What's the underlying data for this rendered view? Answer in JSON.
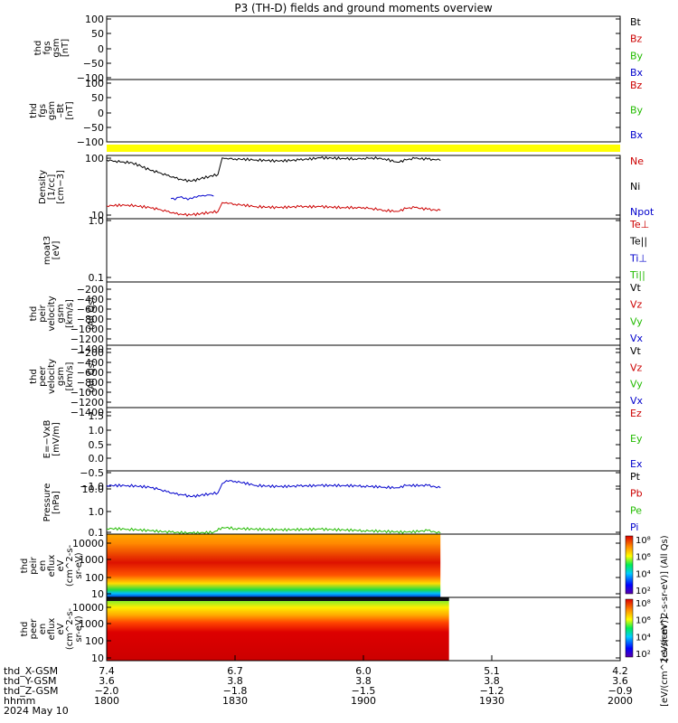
{
  "title": "P3 (TH-D) fields and ground moments overview",
  "chart_data": [
    {
      "id": "fgs",
      "type": "line",
      "ylabel": [
        "thd",
        "fgs",
        "gsm",
        "[nT]"
      ],
      "yticks": [
        "100",
        "50",
        "0",
        "−50",
        "−100"
      ],
      "ylim": [
        -100,
        100
      ],
      "legend": [
        {
          "name": "Bt",
          "color": "#000000"
        },
        {
          "name": "Bz",
          "color": "#cc0000"
        },
        {
          "name": "By",
          "color": "#22bb00"
        },
        {
          "name": "Bx",
          "color": "#0000cc"
        }
      ]
    },
    {
      "id": "fgs-clipped",
      "type": "line",
      "ylabel": [
        "thd",
        "fgs",
        "gsm",
        "–Bt",
        "[nT]"
      ],
      "yticks": [
        "100",
        "50",
        "0",
        "−50",
        "−100"
      ],
      "ylim": [
        -120,
        120
      ],
      "legend": [
        {
          "name": "Bz",
          "color": "#cc0000"
        },
        {
          "name": "By",
          "color": "#22bb00"
        },
        {
          "name": "Bx",
          "color": "#0000cc"
        }
      ]
    },
    {
      "id": "density",
      "type": "line",
      "yscale": "log",
      "ylabel": [
        "Density",
        "[1/cc]",
        "[cm−3]"
      ],
      "yticks": [
        "100",
        "10"
      ],
      "ylim": [
        9,
        110
      ],
      "legend": [
        {
          "name": "Ne",
          "color": "#cc0000"
        },
        {
          "name": "Ni",
          "color": "#000000"
        },
        {
          "name": "Npot",
          "color": "#0000cc"
        }
      ],
      "series": [
        {
          "name": "Ni",
          "color": "#000000",
          "x": [
            1800,
            1802,
            1804,
            1806,
            1808,
            1810,
            1812,
            1814,
            1816,
            1818,
            1820,
            1822,
            1824,
            1826,
            1827,
            1828,
            1830,
            1835,
            1840,
            1845,
            1850,
            1855,
            1858,
            1900,
            1902,
            1905,
            1908,
            1910,
            1912,
            1915,
            1917,
            1918
          ],
          "y": [
            92,
            88,
            85,
            82,
            72,
            62,
            56,
            50,
            45,
            41,
            40,
            44,
            48,
            52,
            100,
            98,
            96,
            92,
            88,
            92,
            100,
            98,
            96,
            98,
            100,
            96,
            84,
            92,
            98,
            95,
            92,
            90
          ]
        },
        {
          "name": "Npot",
          "color": "#0000cc",
          "x": [
            1815,
            1816,
            1817,
            1818,
            1819,
            1820,
            1821,
            1822,
            1823,
            1824,
            1825
          ],
          "y": [
            20,
            19,
            21,
            20,
            19,
            20,
            21,
            22,
            22,
            23,
            22
          ]
        },
        {
          "name": "Ne",
          "color": "#cc0000",
          "x": [
            1800,
            1805,
            1810,
            1812,
            1814,
            1816,
            1818,
            1820,
            1822,
            1824,
            1826,
            1827,
            1828,
            1830,
            1835,
            1840,
            1845,
            1850,
            1855,
            1858,
            1900,
            1902,
            1905,
            1908,
            1910,
            1912,
            1915,
            1918
          ],
          "y": [
            15,
            15.5,
            14,
            13,
            12,
            11,
            10.5,
            10.5,
            11,
            11.5,
            12,
            17,
            17,
            16,
            14.5,
            14,
            14.5,
            14.5,
            14,
            14,
            14,
            13.5,
            12.5,
            12,
            13.5,
            14,
            13,
            12.5
          ]
        }
      ]
    },
    {
      "id": "temperature",
      "type": "line",
      "yscale": "log",
      "ylabel": [
        "moat3",
        "[eV]"
      ],
      "yticks": [
        "1.0",
        "0.1"
      ],
      "ylim": [
        0.1,
        1.0
      ],
      "legend": [
        {
          "name": "Te⊥",
          "color": "#cc0000"
        },
        {
          "name": "Te||",
          "color": "#000000"
        },
        {
          "name": "Ti⊥",
          "color": "#0000cc"
        },
        {
          "name": "Ti||",
          "color": "#22bb00"
        }
      ]
    },
    {
      "id": "ion-velocity",
      "type": "line",
      "ylabel": [
        "thd",
        "peir",
        "velocity",
        "gsm",
        "[km/s]"
      ],
      "ylabel_side": "(All Qs)",
      "yticks": [
        "−200",
        "−400",
        "−600",
        "−800",
        "−1000",
        "−1200",
        "−1400"
      ],
      "ylim": [
        -1400,
        -100
      ],
      "legend": [
        {
          "name": "Vt",
          "color": "#000000"
        },
        {
          "name": "Vz",
          "color": "#cc0000"
        },
        {
          "name": "Vy",
          "color": "#22bb00"
        },
        {
          "name": "Vx",
          "color": "#0000cc"
        }
      ]
    },
    {
      "id": "electron-velocity",
      "type": "line",
      "ylabel": [
        "thd",
        "peer",
        "velocity",
        "gsm",
        "[km/s]"
      ],
      "ylabel_side": "(All Qs)",
      "yticks": [
        "−200",
        "−400",
        "−600",
        "−800",
        "−1000",
        "−1200",
        "−1400"
      ],
      "ylim": [
        -1400,
        -100
      ],
      "legend": [
        {
          "name": "Vt",
          "color": "#000000"
        },
        {
          "name": "Vz",
          "color": "#cc0000"
        },
        {
          "name": "Vy",
          "color": "#22bb00"
        },
        {
          "name": "Vx",
          "color": "#0000cc"
        }
      ]
    },
    {
      "id": "efield",
      "type": "line",
      "ylabel": [
        "E=−VxB",
        "[mV/m]"
      ],
      "yticks": [
        "1.5",
        "1.0",
        "0.5",
        "0.0",
        "−0.5",
        "−1.0"
      ],
      "ylim": [
        -1.2,
        1.6
      ],
      "legend": [
        {
          "name": "Ez",
          "color": "#cc0000"
        },
        {
          "name": "Ey",
          "color": "#22bb00"
        },
        {
          "name": "Ex",
          "color": "#0000cc"
        }
      ]
    },
    {
      "id": "pressure",
      "type": "line",
      "yscale": "log",
      "ylabel": [
        "Pressure",
        "[nPa]"
      ],
      "yticks": [
        "10.0",
        "1.0",
        "0.1"
      ],
      "ylim": [
        0.1,
        40
      ],
      "legend": [
        {
          "name": "Pt",
          "color": "#000000"
        },
        {
          "name": "Pb",
          "color": "#cc0000"
        },
        {
          "name": "Pe",
          "color": "#22bb00"
        },
        {
          "name": "Pi",
          "color": "#0000cc"
        }
      ],
      "series": [
        {
          "name": "Pi",
          "color": "#0000cc",
          "x": [
            1800,
            1805,
            1810,
            1812,
            1814,
            1816,
            1818,
            1820,
            1822,
            1824,
            1826,
            1827,
            1828,
            1830,
            1835,
            1840,
            1845,
            1850,
            1855,
            1900,
            1905,
            1908,
            1910,
            1915,
            1918
          ],
          "y": [
            10,
            10,
            8.5,
            7,
            5.5,
            4.5,
            4,
            3.5,
            4,
            4.5,
            5,
            12,
            16,
            15,
            10,
            9,
            9.5,
            10,
            10,
            9.5,
            8.5,
            8,
            10,
            10,
            8
          ]
        },
        {
          "name": "Pe",
          "color": "#22bb00",
          "x": [
            1800,
            1805,
            1810,
            1815,
            1820,
            1825,
            1827,
            1830,
            1840,
            1850,
            1900,
            1910,
            1915,
            1918
          ],
          "y": [
            0.17,
            0.16,
            0.14,
            0.12,
            0.11,
            0.12,
            0.19,
            0.17,
            0.15,
            0.16,
            0.14,
            0.12,
            0.14,
            0.11
          ]
        }
      ]
    },
    {
      "id": "ion-spectrogram",
      "type": "heatmap",
      "ylabel": [
        "thd",
        "peir",
        "en",
        "eflux",
        "eV",
        "(cm^2-s-",
        "sr-eV)"
      ],
      "yscale": "log",
      "yticks": [
        "10000",
        "1000",
        "100",
        "10"
      ],
      "ylim": [
        7,
        15000
      ],
      "data_end_hhmm": 1918,
      "colorbar": {
        "ticks": [
          "10⁸",
          "10⁶",
          "10⁴",
          "10²"
        ],
        "label": "[eV/(cm^2-s-sr-eV)] (All Qs)"
      }
    },
    {
      "id": "electron-spectrogram",
      "type": "heatmap",
      "ylabel": [
        "thd",
        "peer",
        "en",
        "eflux",
        "eV",
        "(cm^2-s-",
        "sr-eV)"
      ],
      "yscale": "log",
      "yticks": [
        "10000",
        "1000",
        "100",
        "10"
      ],
      "ylim": [
        7,
        15000
      ],
      "data_end_hhmm": 1920,
      "colorbar": {
        "ticks": [
          "10⁸",
          "10⁶",
          "10⁴",
          "10²"
        ],
        "label": "[eV/(cm^2-s-sr-eV)]"
      }
    }
  ],
  "xaxis": {
    "row_labels": [
      "thd_X-GSM",
      "thd_Y-GSM",
      "thd_Z-GSM",
      "hhmm",
      "2024 May 10"
    ],
    "xlim": [
      1800,
      2000
    ],
    "ticks": [
      {
        "hhmm": "1800",
        "x": "7.4",
        "y": "3.6",
        "z": "−2.0"
      },
      {
        "hhmm": "1830",
        "x": "6.7",
        "y": "3.8",
        "z": "−1.8"
      },
      {
        "hhmm": "1900",
        "x": "6.0",
        "y": "3.8",
        "z": "−1.5"
      },
      {
        "hhmm": "1930",
        "x": "5.1",
        "y": "3.8",
        "z": "−1.2"
      },
      {
        "hhmm": "2000",
        "x": "4.2",
        "y": "3.6",
        "z": "−0.9"
      }
    ]
  }
}
